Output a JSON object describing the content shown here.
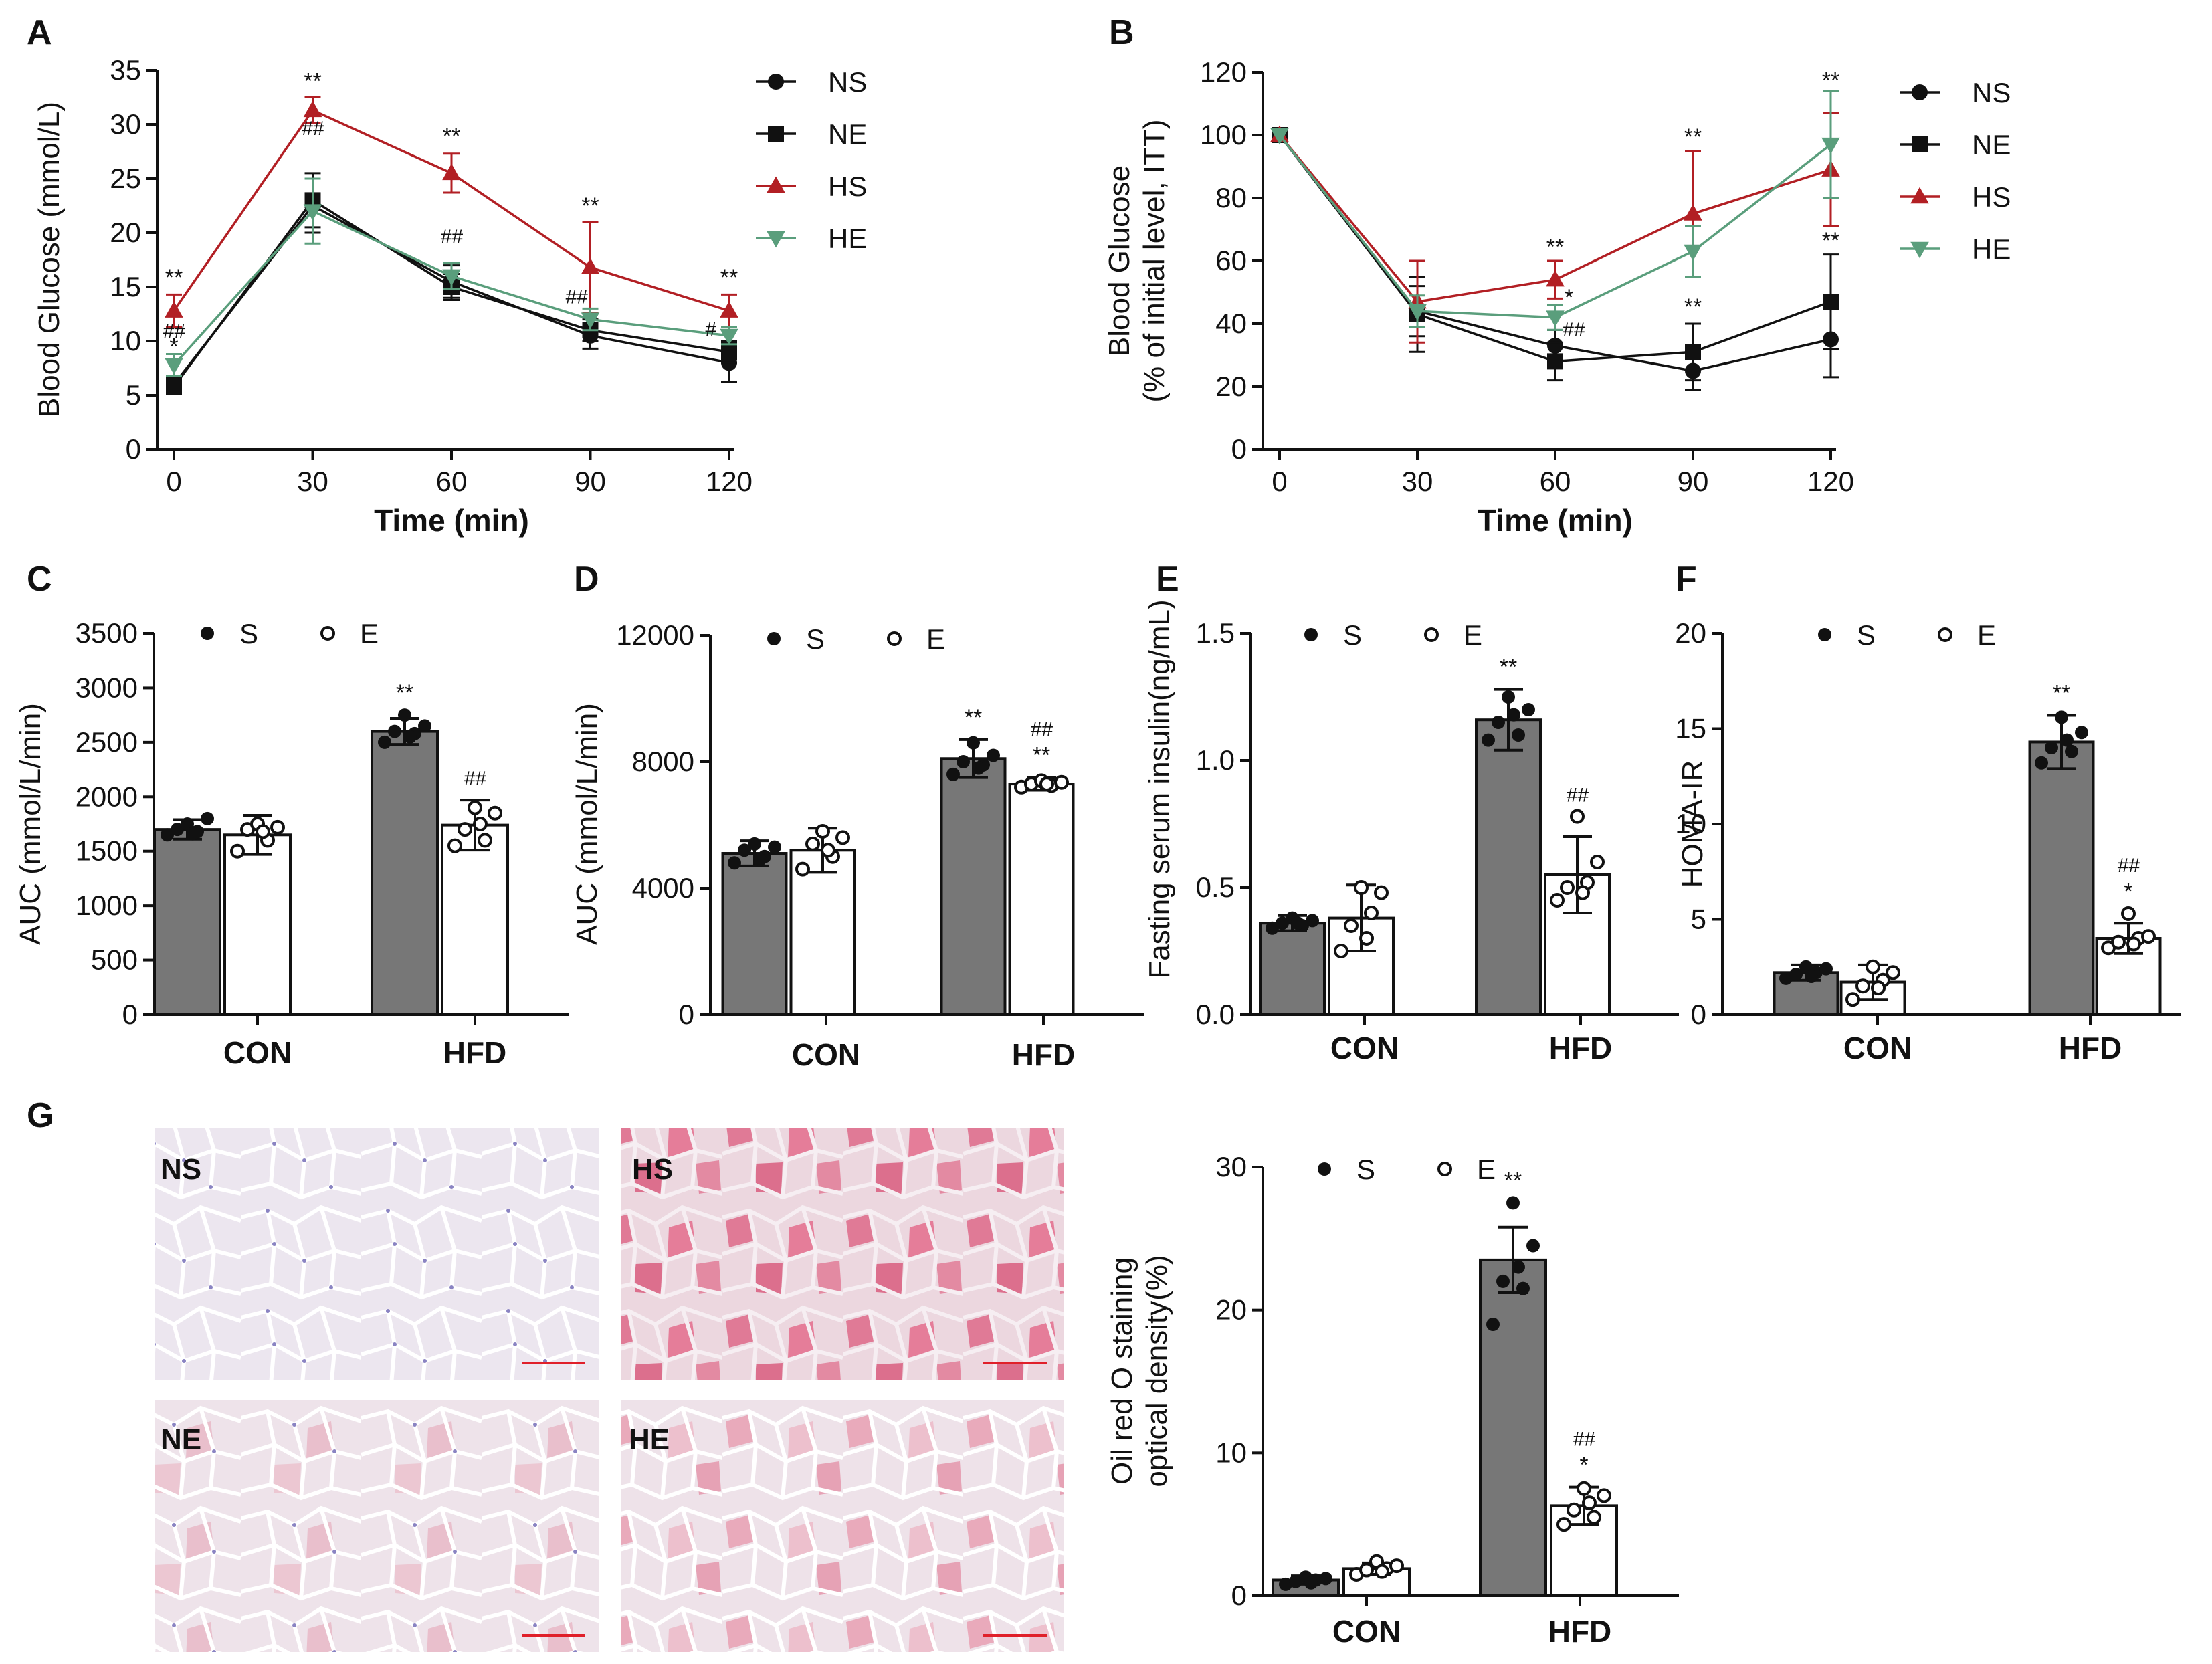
{
  "figure": {
    "panel_letters": [
      "A",
      "B",
      "C",
      "D",
      "E",
      "F",
      "G"
    ],
    "micro_labels": [
      "NS",
      "HS",
      "NE",
      "HE"
    ]
  },
  "colors": {
    "NS": "#111111",
    "NE": "#111111",
    "HS": "#b21f24",
    "HE": "#5a9e7c",
    "bar_S": "#777777",
    "bar_E": "#ffffff"
  },
  "chart_data": [
    {
      "panel": "A",
      "type": "line",
      "title": "",
      "xlabel": "Time (min)",
      "ylabel": "Blood Glucose (mmol/L)",
      "x": [
        0,
        30,
        60,
        90,
        120
      ],
      "xticks": [
        "0",
        "30",
        "60",
        "90",
        "120"
      ],
      "yticks": [
        "0",
        "5",
        "10",
        "15",
        "20",
        "25",
        "30",
        "35"
      ],
      "ylim": [
        0,
        35
      ],
      "legend": [
        "NS",
        "NE",
        "HS",
        "HE"
      ],
      "series": [
        {
          "name": "NS",
          "marker": "circle",
          "values": [
            6.0,
            22.5,
            15.5,
            10.5,
            8.0
          ],
          "err": [
            0.6,
            2.5,
            1.5,
            1.2,
            1.8
          ]
        },
        {
          "name": "NE",
          "marker": "square",
          "values": [
            5.8,
            23.0,
            15.0,
            11.0,
            9.0
          ],
          "err": [
            0.6,
            2.5,
            1.2,
            1.0,
            1.0
          ]
        },
        {
          "name": "HS",
          "marker": "triangle-up",
          "values": [
            12.8,
            31.3,
            25.5,
            16.8,
            12.8
          ],
          "err": [
            1.5,
            1.2,
            1.8,
            4.2,
            1.5
          ]
        },
        {
          "name": "HE",
          "marker": "triangle-down",
          "values": [
            7.8,
            22.0,
            16.0,
            12.0,
            10.5
          ],
          "err": [
            1.0,
            3.0,
            1.2,
            1.0,
            0.8
          ]
        }
      ],
      "annotations": [
        {
          "x": 0,
          "y": 15.2,
          "text": "**",
          "kind": "star"
        },
        {
          "x": 0,
          "y": 10.3,
          "text": "##",
          "kind": "hash"
        },
        {
          "x": 0,
          "y": 8.8,
          "text": "*",
          "kind": "star"
        },
        {
          "x": 30,
          "y": 33.3,
          "text": "**",
          "kind": "star"
        },
        {
          "x": 30,
          "y": 29.0,
          "text": "##",
          "kind": "hash"
        },
        {
          "x": 60,
          "y": 28.2,
          "text": "**",
          "kind": "star"
        },
        {
          "x": 60,
          "y": 19.0,
          "text": "##",
          "kind": "hash"
        },
        {
          "x": 90,
          "y": 21.8,
          "text": "**",
          "kind": "star"
        },
        {
          "x": 87,
          "y": 13.5,
          "text": "##",
          "kind": "hash"
        },
        {
          "x": 120,
          "y": 15.2,
          "text": "**",
          "kind": "star"
        },
        {
          "x": 116,
          "y": 10.5,
          "text": "#",
          "kind": "hash"
        }
      ]
    },
    {
      "panel": "B",
      "type": "line",
      "title": "",
      "xlabel": "Time (min)",
      "ylabel": "Blood Glucose",
      "ylabel2": "(% of initial level, ITT)",
      "x": [
        0,
        30,
        60,
        90,
        120
      ],
      "xticks": [
        "0",
        "30",
        "60",
        "90",
        "120"
      ],
      "yticks": [
        "0",
        "20",
        "40",
        "60",
        "80",
        "100",
        "120"
      ],
      "ylim": [
        0,
        120
      ],
      "legend": [
        "NS",
        "NE",
        "HS",
        "HE"
      ],
      "series": [
        {
          "name": "NS",
          "marker": "circle",
          "values": [
            100,
            44,
            33,
            25,
            35
          ],
          "err": [
            0,
            8,
            5,
            6,
            12
          ]
        },
        {
          "name": "NE",
          "marker": "square",
          "values": [
            100,
            43,
            28,
            31,
            47
          ],
          "err": [
            0,
            12,
            6,
            9,
            15
          ]
        },
        {
          "name": "HS",
          "marker": "triangle-up",
          "values": [
            100,
            47,
            54,
            75,
            89
          ],
          "err": [
            0,
            13,
            6,
            20,
            18
          ]
        },
        {
          "name": "HE",
          "marker": "triangle-down",
          "values": [
            100,
            44,
            42,
            63,
            97
          ],
          "err": [
            0,
            5,
            4,
            8,
            17
          ]
        }
      ],
      "annotations": [
        {
          "x": 60,
          "y": 62,
          "text": "**",
          "kind": "star"
        },
        {
          "x": 63,
          "y": 46,
          "text": "*",
          "kind": "star"
        },
        {
          "x": 64,
          "y": 36,
          "text": "##",
          "kind": "hash"
        },
        {
          "x": 90,
          "y": 97,
          "text": "**",
          "kind": "star"
        },
        {
          "x": 90,
          "y": 43,
          "text": "**",
          "kind": "star"
        },
        {
          "x": 120,
          "y": 115,
          "text": "**",
          "kind": "star"
        },
        {
          "x": 120,
          "y": 64,
          "text": "**",
          "kind": "star"
        }
      ]
    },
    {
      "panel": "C",
      "type": "bar",
      "title": "",
      "xlabel": "",
      "ylabel": "AUC (mmol/L/min)",
      "categories": [
        "CON",
        "HFD"
      ],
      "yticks": [
        "0",
        "500",
        "1000",
        "1500",
        "2000",
        "2500",
        "3000",
        "3500"
      ],
      "ylim": [
        0,
        3500
      ],
      "legend": [
        "S",
        "E"
      ],
      "series": [
        {
          "name": "S",
          "values": [
            1700,
            2600
          ],
          "err": [
            90,
            120
          ],
          "points": [
            [
              1650,
              1700,
              1750,
              1680,
              1800,
              1660
            ],
            [
              2500,
              2600,
              2750,
              2580,
              2650,
              2550
            ]
          ]
        },
        {
          "name": "E",
          "values": [
            1650,
            1740
          ],
          "err": [
            180,
            230
          ],
          "points": [
            [
              1500,
              1700,
              1750,
              1600,
              1720,
              1680
            ],
            [
              1550,
              1700,
              1900,
              1600,
              1850,
              1750
            ]
          ]
        }
      ],
      "annotations": [
        {
          "group": 1,
          "series": "S",
          "lines": [
            "**"
          ]
        },
        {
          "group": 1,
          "series": "E",
          "lines": [
            "##"
          ]
        }
      ]
    },
    {
      "panel": "D",
      "type": "bar",
      "title": "",
      "xlabel": "",
      "ylabel": "AUC (mmol/L/min)",
      "categories": [
        "CON",
        "HFD"
      ],
      "yticks": [
        "0",
        "4000",
        "8000",
        "12000"
      ],
      "ylim": [
        0,
        12000
      ],
      "legend": [
        "S",
        "E"
      ],
      "series": [
        {
          "name": "S",
          "values": [
            5100,
            8100
          ],
          "err": [
            400,
            600
          ],
          "points": [
            [
              4800,
              5200,
              5400,
              5000,
              5300,
              4900
            ],
            [
              7600,
              8000,
              8600,
              7900,
              8200,
              7800
            ]
          ]
        },
        {
          "name": "E",
          "values": [
            5200,
            7300
          ],
          "err": [
            700,
            200
          ],
          "points": [
            [
              4600,
              5400,
              5800,
              5000,
              5600,
              5200
            ],
            [
              7200,
              7300,
              7400,
              7250,
              7350,
              7300
            ]
          ]
        }
      ],
      "annotations": [
        {
          "group": 1,
          "series": "S",
          "lines": [
            "**"
          ]
        },
        {
          "group": 1,
          "series": "E",
          "lines": [
            "##",
            "**"
          ]
        }
      ]
    },
    {
      "panel": "E",
      "type": "bar",
      "title": "",
      "xlabel": "",
      "ylabel": "Fasting serum insulin(ng/mL)",
      "categories": [
        "CON",
        "HFD"
      ],
      "yticks": [
        "0.0",
        "0.5",
        "1.0",
        "1.5"
      ],
      "ylim": [
        0,
        1.5
      ],
      "legend": [
        "S",
        "E"
      ],
      "series": [
        {
          "name": "S",
          "values": [
            0.36,
            1.16
          ],
          "err": [
            0.03,
            0.12
          ],
          "points": [
            [
              0.34,
              0.36,
              0.38,
              0.35,
              0.37,
              0.36
            ],
            [
              1.08,
              1.15,
              1.25,
              1.1,
              1.2,
              1.18
            ]
          ]
        },
        {
          "name": "E",
          "values": [
            0.38,
            0.55
          ],
          "err": [
            0.13,
            0.15
          ],
          "points": [
            [
              0.25,
              0.35,
              0.5,
              0.4,
              0.48,
              0.3
            ],
            [
              0.45,
              0.5,
              0.78,
              0.52,
              0.6,
              0.48
            ]
          ]
        }
      ],
      "annotations": [
        {
          "group": 1,
          "series": "S",
          "lines": [
            "**"
          ]
        },
        {
          "group": 1,
          "series": "E",
          "lines": [
            "##"
          ]
        }
      ]
    },
    {
      "panel": "F",
      "type": "bar",
      "title": "",
      "xlabel": "",
      "ylabel": "HOMA-IR",
      "categories": [
        "CON",
        "HFD"
      ],
      "yticks": [
        "0",
        "5",
        "10",
        "15",
        "20"
      ],
      "ylim": [
        0,
        20
      ],
      "legend": [
        "S",
        "E"
      ],
      "series": [
        {
          "name": "S",
          "values": [
            2.2,
            14.3
          ],
          "err": [
            0.4,
            1.4
          ],
          "points": [
            [
              1.9,
              2.1,
              2.5,
              2.2,
              2.4,
              2.0
            ],
            [
              13.2,
              14.0,
              15.6,
              13.8,
              14.8,
              14.4
            ]
          ]
        },
        {
          "name": "E",
          "values": [
            1.7,
            4.0
          ],
          "err": [
            0.9,
            0.8
          ],
          "points": [
            [
              0.8,
              1.5,
              2.5,
              1.8,
              2.2,
              1.4
            ],
            [
              3.5,
              3.8,
              5.3,
              4.0,
              4.1,
              3.7
            ]
          ]
        }
      ],
      "annotations": [
        {
          "group": 1,
          "series": "S",
          "lines": [
            "**"
          ]
        },
        {
          "group": 1,
          "series": "E",
          "lines": [
            "##",
            "*"
          ]
        }
      ]
    },
    {
      "panel": "G",
      "type": "bar",
      "title": "",
      "xlabel": "",
      "ylabel": "Oil red O staining",
      "ylabel2": "optical density(%)",
      "categories": [
        "CON",
        "HFD"
      ],
      "yticks": [
        "0",
        "10",
        "20",
        "30"
      ],
      "ylim": [
        0,
        30
      ],
      "legend": [
        "S",
        "E"
      ],
      "series": [
        {
          "name": "S",
          "values": [
            1.1,
            23.5
          ],
          "err": [
            0.3,
            2.3
          ],
          "points": [
            [
              0.8,
              1.0,
              1.3,
              1.1,
              1.2,
              0.9
            ],
            [
              19.0,
              22.0,
              27.5,
              21.5,
              24.5,
              23.0
            ]
          ]
        },
        {
          "name": "E",
          "values": [
            1.9,
            6.3
          ],
          "err": [
            0.4,
            1.3
          ],
          "points": [
            [
              1.5,
              1.8,
              2.4,
              1.9,
              2.1,
              1.7
            ],
            [
              5.0,
              6.0,
              7.5,
              5.5,
              7.0,
              6.5
            ]
          ]
        }
      ],
      "annotations": [
        {
          "group": 1,
          "series": "S",
          "lines": [
            "**"
          ]
        },
        {
          "group": 1,
          "series": "E",
          "lines": [
            "##",
            "*"
          ]
        }
      ]
    }
  ]
}
